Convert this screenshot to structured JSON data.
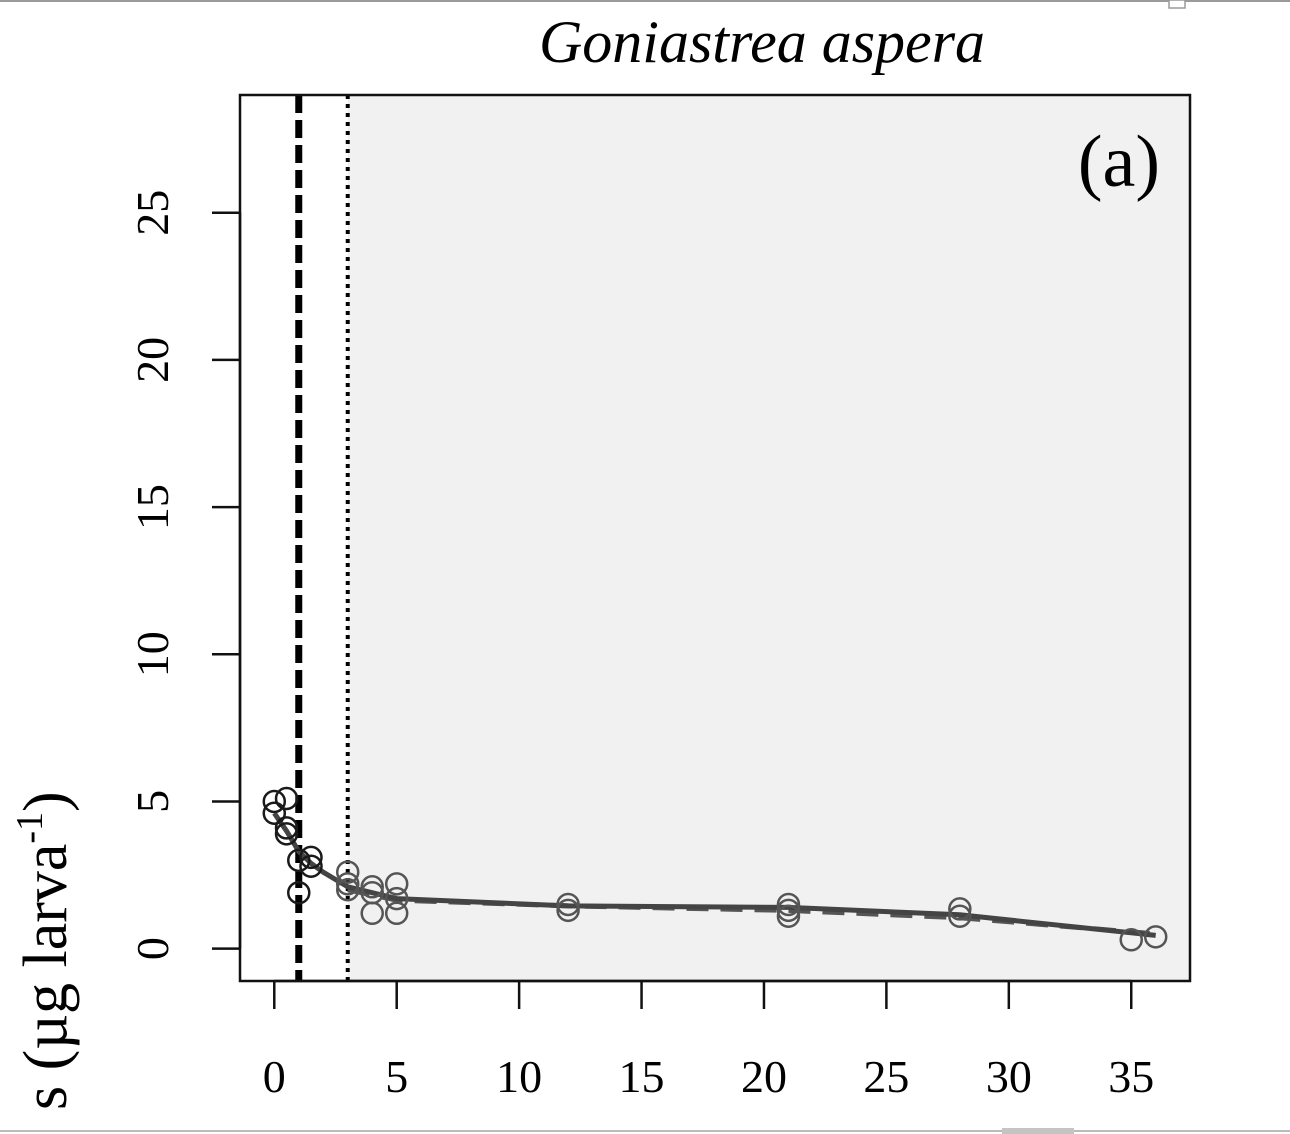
{
  "chart_data": {
    "type": "scatter",
    "title": "Goniastrea aspera",
    "panel_label": "(a)",
    "ylabel": "s (µg larva",
    "ylabel_sup": "-1",
    "ylabel_close": ")",
    "xlabel": "",
    "xlim": [
      -1.4,
      37.4
    ],
    "ylim": [
      -1.1,
      29.0
    ],
    "x_ticks": [
      0,
      5,
      10,
      15,
      20,
      25,
      30,
      35
    ],
    "x_tick_labels": [
      "0",
      "5",
      "10",
      "15",
      "20",
      "25",
      "30",
      "35"
    ],
    "y_ticks": [
      0,
      5,
      10,
      15,
      20,
      25
    ],
    "y_tick_labels": [
      "0",
      "5",
      "10",
      "15",
      "20",
      "25"
    ],
    "grid": false,
    "shaded_region": {
      "x_from": 3,
      "x_to": 37.4,
      "color": "#f1f1f1"
    },
    "vertical_lines": [
      {
        "x": 1,
        "style": "dashed"
      },
      {
        "x": 3,
        "style": "dotted"
      }
    ],
    "points": {
      "x": [
        0,
        0,
        0.5,
        0.5,
        0.5,
        1,
        1,
        1.5,
        1.5,
        3,
        3,
        3,
        4,
        4,
        4,
        5,
        5,
        5,
        12,
        12,
        21,
        21,
        21,
        28,
        28,
        35,
        36
      ],
      "y": [
        5.0,
        4.6,
        5.1,
        4.1,
        3.9,
        3.0,
        1.9,
        3.1,
        2.8,
        2.6,
        2.2,
        2.0,
        2.1,
        1.9,
        1.2,
        2.2,
        1.7,
        1.2,
        1.5,
        1.3,
        1.5,
        1.3,
        1.1,
        1.35,
        1.1,
        0.3,
        0.4
      ]
    },
    "fit_solid": {
      "x": [
        0,
        0.5,
        1,
        1.5,
        2,
        3,
        5,
        12,
        21,
        28,
        36
      ],
      "y": [
        4.6,
        4.0,
        3.3,
        2.9,
        2.6,
        2.1,
        1.7,
        1.45,
        1.4,
        1.15,
        0.45
      ]
    },
    "fit_dashed": {
      "x": [
        3,
        5,
        12,
        21,
        28,
        36
      ],
      "y": [
        2.0,
        1.65,
        1.45,
        1.3,
        1.05,
        0.5
      ]
    }
  }
}
